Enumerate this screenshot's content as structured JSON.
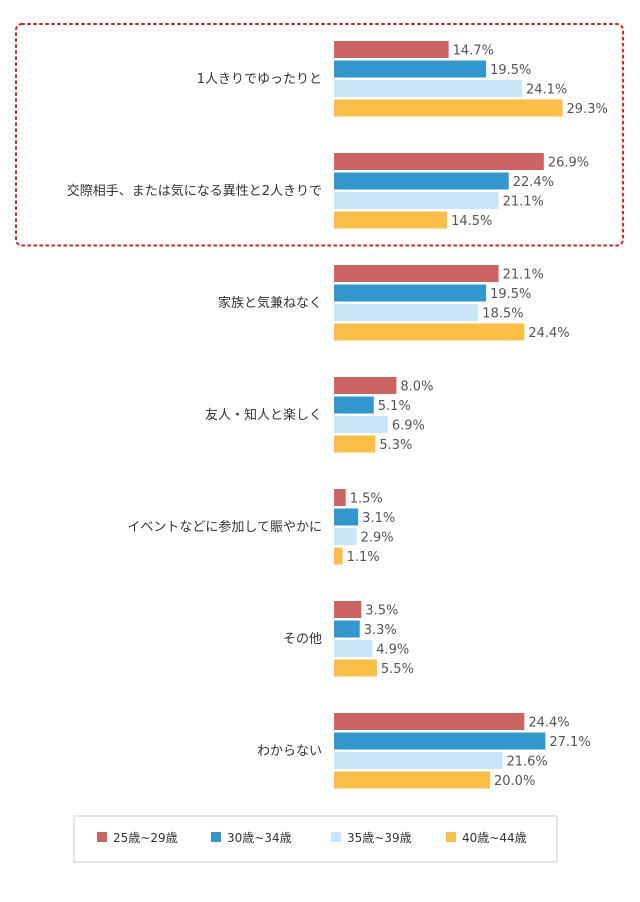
{
  "chart_data": {
    "type": "bar",
    "orientation": "horizontal",
    "categories": [
      "1人きりでゆったりと",
      "交際相手、または気になる異性と2人きりで",
      "家族と気兼ねなく",
      "友人・知人と楽しく",
      "イベントなどに参加して賑やかに",
      "その他",
      "わからない"
    ],
    "series": [
      {
        "name": "25歳~29歳",
        "color": "#cd6464",
        "values": [
          14.7,
          26.9,
          21.1,
          8.0,
          1.5,
          3.5,
          24.4
        ],
        "labels": [
          "14.7%",
          "26.9%",
          "21.1%",
          "8.0%",
          "1.5%",
          "3.5%",
          "24.4%"
        ]
      },
      {
        "name": "30歳~34歳",
        "color": "#3397cf",
        "values": [
          19.5,
          22.4,
          19.5,
          5.1,
          3.1,
          3.3,
          27.1
        ],
        "labels": [
          "19.5%",
          "22.4%",
          "19.5%",
          "5.1%",
          "3.1%",
          "3.3%",
          "27.1%"
        ]
      },
      {
        "name": "35歳~39歳",
        "color": "#c9e6f9",
        "values": [
          24.1,
          21.1,
          18.5,
          6.9,
          2.9,
          4.9,
          21.6
        ],
        "labels": [
          "24.1%",
          "21.1%",
          "18.5%",
          "6.9%",
          "2.9%",
          "4.9%",
          "21.6%"
        ]
      },
      {
        "name": "40歳~44歳",
        "color": "#fbbf45",
        "values": [
          29.3,
          14.5,
          24.4,
          5.3,
          1.1,
          5.5,
          20.0
        ],
        "labels": [
          "29.3%",
          "14.5%",
          "24.4%",
          "5.3%",
          "1.1%",
          "5.5%",
          "20.0%"
        ]
      }
    ],
    "xlim": [
      0,
      100
    ],
    "unit": "%",
    "highlight": {
      "categories": [
        0,
        1
      ],
      "style": "dotted",
      "color": "#dd2222"
    },
    "legend": {
      "position": "bottom"
    }
  }
}
